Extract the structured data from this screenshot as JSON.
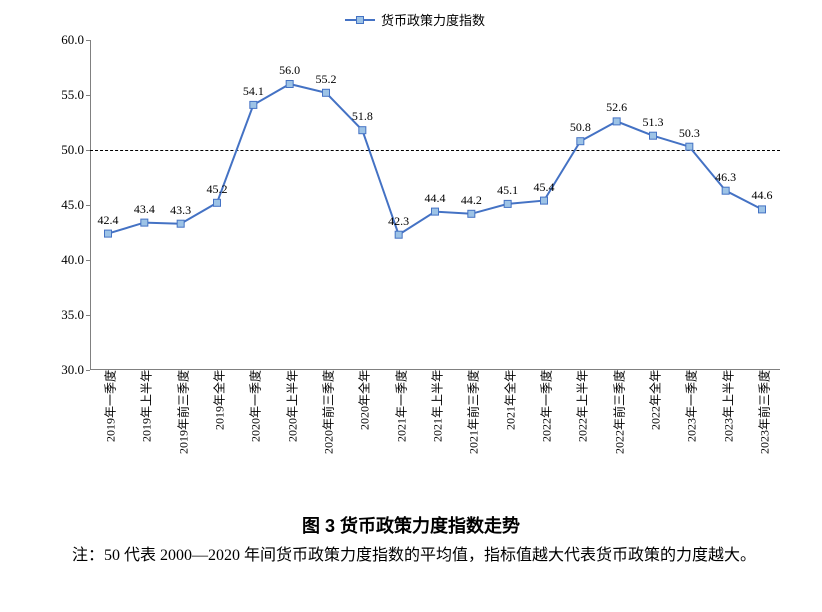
{
  "chart": {
    "type": "line",
    "legend_label": "货币政策力度指数",
    "series_color": "#4472c4",
    "marker_fill": "#9dc3e6",
    "marker_stroke": "#4472c4",
    "marker_size": 7,
    "line_width": 2,
    "reference_line": {
      "value": 50.0,
      "color": "#000000",
      "dash": true
    },
    "background_color": "#ffffff",
    "axis_color": "#808080",
    "y_axis": {
      "min": 30.0,
      "max": 60.0,
      "tick_step": 5.0,
      "ticks": [
        "30.0",
        "35.0",
        "40.0",
        "45.0",
        "50.0",
        "55.0",
        "60.0"
      ],
      "fontsize": 13
    },
    "x_labels": [
      "2019年一季度",
      "2019年上半年",
      "2019年前三季度",
      "2019年全年",
      "2020年一季度",
      "2020年上半年",
      "2020年前三季度",
      "2020年全年",
      "2021年一季度",
      "2021年上半年",
      "2021年前三季度",
      "2021年全年",
      "2022年一季度",
      "2022年上半年",
      "2022年前三季度",
      "2022年全年",
      "2023年一季度",
      "2023年上半年",
      "2023年前三季度"
    ],
    "values": [
      42.4,
      43.4,
      43.3,
      45.2,
      54.1,
      56.0,
      55.2,
      51.8,
      42.3,
      44.4,
      44.2,
      45.1,
      45.4,
      50.8,
      52.6,
      51.3,
      50.3,
      46.3,
      44.6
    ],
    "data_label_fontsize": 12,
    "x_label_fontsize": 12,
    "label_color": "#000000"
  },
  "caption": "图 3  货币政策力度指数走势",
  "note_prefix": "注：",
  "note_body": "50 代表 2000—2020 年间货币政策力度指数的平均值，指标值越大代表货币政策的力度越大。"
}
